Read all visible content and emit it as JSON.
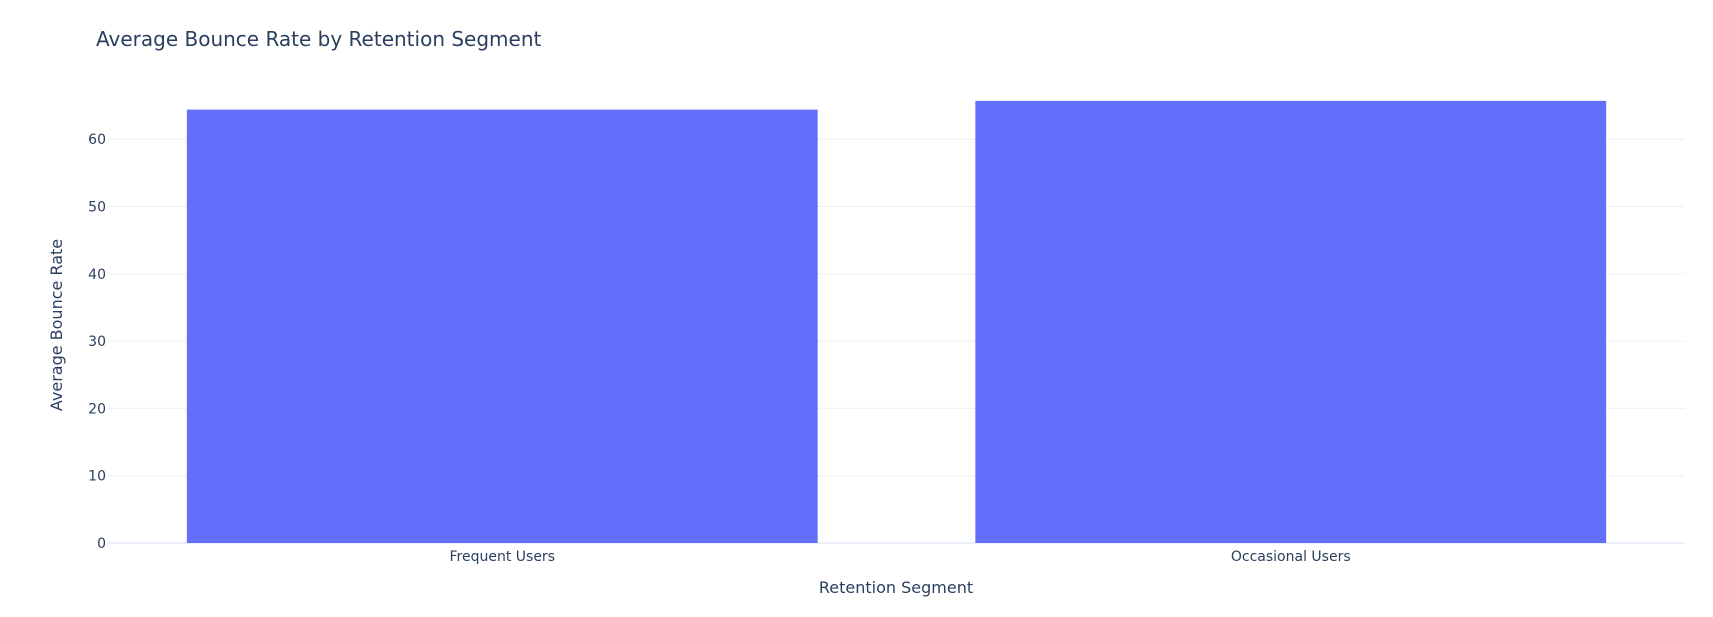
{
  "chart_data": {
    "type": "bar",
    "title": "Average Bounce Rate by Retention Segment",
    "xlabel": "Retention Segment",
    "ylabel": "Average Bounce Rate",
    "categories": [
      "Frequent Users",
      "Occasional Users"
    ],
    "values": [
      64.4,
      65.7
    ],
    "ylim": [
      0,
      68.8
    ],
    "yticks": [
      0,
      10,
      20,
      30,
      40,
      50,
      60
    ],
    "grid": true,
    "bar_color": "#636efa"
  }
}
